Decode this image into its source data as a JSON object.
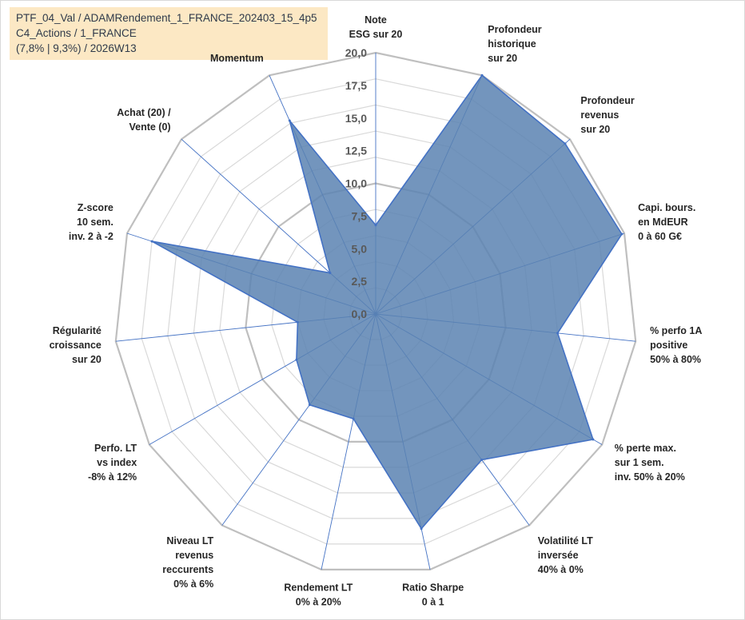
{
  "info_box": {
    "line1": "PTF_04_Val / ADAMRendement_1_FRANCE_202403_15_4p5",
    "line2": "C4_Actions / 1_FRANCE",
    "line3": "(7,8% | 9,3%) / 2026W13"
  },
  "chart_data": {
    "type": "radar",
    "title": "",
    "series": [
      {
        "name": "PTF_04_Val",
        "values": [
          6.8,
          20.0,
          19.5,
          19.8,
          14.0,
          19.2,
          13.8,
          16.8,
          8.2,
          8.6,
          7.0,
          6.0,
          18.0,
          4.7,
          16.2
        ],
        "color": "#5b82b2",
        "edge_color": "#4472c4"
      }
    ],
    "r_range": [
      0,
      20
    ],
    "r_ticks": [
      "0,0",
      "2,5",
      "5,0",
      "7,5",
      "10,0",
      "12,5",
      "15,0",
      "17,5",
      "20,0"
    ],
    "axes": [
      {
        "lines": [
          "Note",
          "ESG sur 20"
        ]
      },
      {
        "lines": [
          "Profondeur",
          "historique",
          "sur 20"
        ]
      },
      {
        "lines": [
          "Profondeur",
          "revenus",
          "sur 20"
        ]
      },
      {
        "lines": [
          "Capi. bours.",
          "en MdEUR",
          "0 à 60 G€"
        ]
      },
      {
        "lines": [
          "% perfo 1A",
          "positive",
          "50% à 80%"
        ]
      },
      {
        "lines": [
          "% perte max.",
          "sur 1 sem.",
          "inv. 50% à 20%"
        ]
      },
      {
        "lines": [
          "Volatilité LT",
          "inversée",
          "40% à 0%"
        ]
      },
      {
        "lines": [
          "Ratio Sharpe",
          "0 à 1"
        ]
      },
      {
        "lines": [
          "Rendement LT",
          "0% à 20%"
        ]
      },
      {
        "lines": [
          "Niveau LT",
          "revenus",
          "reccurents",
          "0% à 6%"
        ]
      },
      {
        "lines": [
          "Perfo. LT",
          "vs index",
          "-8% à 12%"
        ]
      },
      {
        "lines": [
          "Régularité",
          "croissance",
          "sur 20"
        ]
      },
      {
        "lines": [
          "Z-score",
          "10 sem.",
          "inv. 2 à -2"
        ]
      },
      {
        "lines": [
          "Achat (20) /",
          "Vente (0)"
        ]
      },
      {
        "lines": [
          "Momentum"
        ],
        "muted": true
      }
    ],
    "grid_color": "#c0c0c0",
    "axis_line_color": "#4472c4",
    "muted_label_color": "#a6a6a6"
  }
}
